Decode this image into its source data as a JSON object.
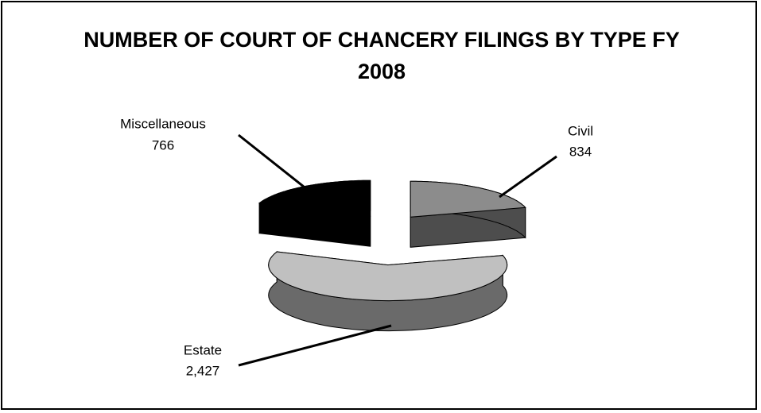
{
  "chart_data": {
    "type": "pie",
    "title": "NUMBER OF COURT OF CHANCERY FILINGS BY TYPE FY 2008",
    "categories": [
      "Civil",
      "Estate",
      "Miscellaneous"
    ],
    "values": [
      834,
      2427,
      766
    ],
    "value_labels": [
      "834",
      "2,427",
      "766"
    ],
    "colors": [
      "#8c8c8c",
      "#c0c0c0",
      "#000000"
    ]
  }
}
